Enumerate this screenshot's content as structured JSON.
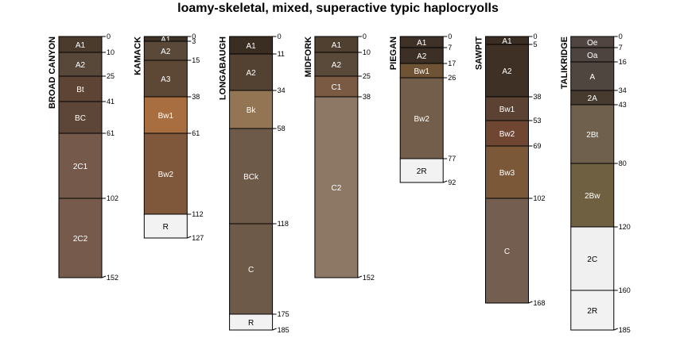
{
  "chart_data": {
    "type": "soil-profile-sketch",
    "title": "loamy-skeletal, mixed, superactive typic haplocryolls",
    "depth_unit": "cm",
    "profiles": [
      {
        "name": "BROAD CANYON",
        "horizons": [
          {
            "label": "A1",
            "top": 0,
            "bottom": 10,
            "color": "#4a3b2c"
          },
          {
            "label": "A2",
            "top": 10,
            "bottom": 25,
            "color": "#57483a"
          },
          {
            "label": "Bt",
            "top": 25,
            "bottom": 41,
            "color": "#5e4434"
          },
          {
            "label": "BC",
            "top": 41,
            "bottom": 61,
            "color": "#5d4637"
          },
          {
            "label": "2C1",
            "top": 61,
            "bottom": 102,
            "color": "#755a4c"
          },
          {
            "label": "2C2",
            "top": 102,
            "bottom": 152,
            "color": "#765a4c"
          }
        ]
      },
      {
        "name": "KAMACK",
        "horizons": [
          {
            "label": "A1",
            "top": 0,
            "bottom": 3,
            "color": "#3f3327"
          },
          {
            "label": "A2",
            "top": 3,
            "bottom": 15,
            "color": "#5a4838"
          },
          {
            "label": "A3",
            "top": 15,
            "bottom": 38,
            "color": "#5d4836"
          },
          {
            "label": "Bw1",
            "top": 38,
            "bottom": 61,
            "color": "#a86e40"
          },
          {
            "label": "Bw2",
            "top": 61,
            "bottom": 112,
            "color": "#7f573a"
          },
          {
            "label": "R",
            "top": 112,
            "bottom": 127,
            "color": "#f2f2f2"
          }
        ]
      },
      {
        "name": "LONGABAUGH",
        "horizons": [
          {
            "label": "A1",
            "top": 0,
            "bottom": 11,
            "color": "#3a2d22"
          },
          {
            "label": "A2",
            "top": 11,
            "bottom": 34,
            "color": "#534232"
          },
          {
            "label": "Bk",
            "top": 34,
            "bottom": 58,
            "color": "#937554"
          },
          {
            "label": "BCk",
            "top": 58,
            "bottom": 118,
            "color": "#6e5a48"
          },
          {
            "label": "C",
            "top": 118,
            "bottom": 175,
            "color": "#6e5a48"
          },
          {
            "label": "R",
            "top": 175,
            "bottom": 185,
            "color": "#f2f2f2"
          }
        ]
      },
      {
        "name": "MIDFORK",
        "horizons": [
          {
            "label": "A1",
            "top": 0,
            "bottom": 10,
            "color": "#504030"
          },
          {
            "label": "A2",
            "top": 10,
            "bottom": 25,
            "color": "#5a4a3a"
          },
          {
            "label": "C1",
            "top": 25,
            "bottom": 38,
            "color": "#7a5a42"
          },
          {
            "label": "C2",
            "top": 38,
            "bottom": 152,
            "color": "#8c7865"
          }
        ]
      },
      {
        "name": "PIEGAN",
        "horizons": [
          {
            "label": "A1",
            "top": 0,
            "bottom": 7,
            "color": "#3d3128"
          },
          {
            "label": "A2",
            "top": 7,
            "bottom": 17,
            "color": "#3b2f26"
          },
          {
            "label": "Bw1",
            "top": 17,
            "bottom": 26,
            "color": "#6e5434"
          },
          {
            "label": "Bw2",
            "top": 26,
            "bottom": 77,
            "color": "#735e4c"
          },
          {
            "label": "2R",
            "top": 77,
            "bottom": 92,
            "color": "#f2f2f2"
          }
        ]
      },
      {
        "name": "SAWPIT",
        "horizons": [
          {
            "label": "A1",
            "top": 0,
            "bottom": 5,
            "color": "#3a2d23"
          },
          {
            "label": "A2",
            "top": 5,
            "bottom": 38,
            "color": "#3e3024"
          },
          {
            "label": "Bw1",
            "top": 38,
            "bottom": 53,
            "color": "#5c4232"
          },
          {
            "label": "Bw2",
            "top": 53,
            "bottom": 69,
            "color": "#6e4632"
          },
          {
            "label": "Bw3",
            "top": 69,
            "bottom": 102,
            "color": "#7a5838"
          },
          {
            "label": "C",
            "top": 102,
            "bottom": 168,
            "color": "#735e50"
          }
        ]
      },
      {
        "name": "TALIKRIDGE",
        "horizons": [
          {
            "label": "Oe",
            "top": 0,
            "bottom": 7,
            "color": "#504540"
          },
          {
            "label": "Oa",
            "top": 7,
            "bottom": 16,
            "color": "#4e443f"
          },
          {
            "label": "A",
            "top": 16,
            "bottom": 34,
            "color": "#504640"
          },
          {
            "label": "2A",
            "top": 34,
            "bottom": 43,
            "color": "#473b30"
          },
          {
            "label": "2Bt",
            "top": 43,
            "bottom": 80,
            "color": "#6f604e"
          },
          {
            "label": "2Bw",
            "top": 80,
            "bottom": 120,
            "color": "#6e6040"
          },
          {
            "label": "2C",
            "top": 120,
            "bottom": 160,
            "color": "#f0f0f0"
          },
          {
            "label": "2R",
            "top": 160,
            "bottom": 185,
            "color": "#f2f2f2"
          }
        ]
      }
    ]
  }
}
